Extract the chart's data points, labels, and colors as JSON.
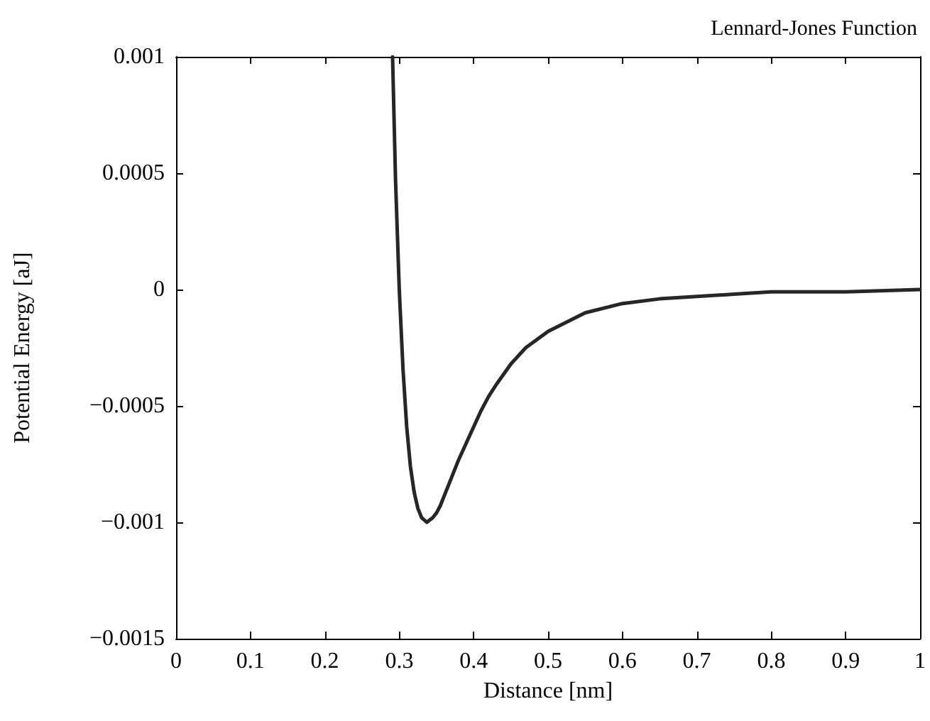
{
  "chart_data": {
    "type": "line",
    "title": "Lennard-Jones Function",
    "xlabel": "Distance [nm]",
    "ylabel": "Potential Energy [aJ]",
    "x": [
      0.291,
      0.295,
      0.3,
      0.305,
      0.31,
      0.315,
      0.32,
      0.325,
      0.33,
      0.337,
      0.345,
      0.35,
      0.355,
      0.36,
      0.37,
      0.38,
      0.39,
      0.41,
      0.42,
      0.43,
      0.45,
      0.47,
      0.5,
      0.55,
      0.6,
      0.65,
      0.7,
      0.75,
      0.8,
      0.9,
      1.0
    ],
    "series": [
      {
        "color": "#262626",
        "values": [
          0.001,
          0.00047,
          0,
          -0.00034,
          -0.00059,
          -0.00076,
          -0.00087,
          -0.00094,
          -0.00098,
          -0.001,
          -0.00098,
          -0.00096,
          -0.00093,
          -0.00089,
          -0.00081,
          -0.00073,
          -0.00066,
          -0.00052,
          -0.00046,
          -0.00041,
          -0.00032,
          -0.00025,
          -0.00018,
          -0.0001,
          -6e-05,
          -4e-05,
          -3e-05,
          -2e-05,
          -1e-05,
          -1e-05,
          0
        ]
      }
    ],
    "xlim": [
      0,
      1
    ],
    "xticks": [
      0,
      0.1,
      0.2,
      0.3,
      0.4,
      0.5,
      0.6,
      0.7,
      0.8,
      0.9,
      1
    ],
    "ylim": [
      -0.0015,
      0.001
    ],
    "yticks": [
      -0.0015,
      -0.001,
      -0.0005,
      0,
      0.0005,
      0.001
    ],
    "marker": "none",
    "line_style": "solid"
  }
}
